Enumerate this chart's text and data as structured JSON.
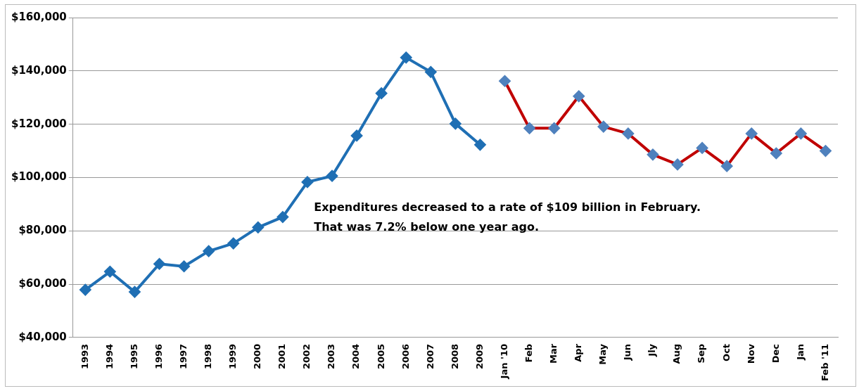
{
  "chart_data": {
    "type": "line",
    "categories": [
      "1993",
      "1994",
      "1995",
      "1996",
      "1997",
      "1998",
      "1999",
      "2000",
      "2001",
      "2002",
      "2003",
      "2004",
      "2005",
      "2006",
      "2007",
      "2008",
      "2009",
      "Jan '10",
      "Feb",
      "Mar",
      "Apr",
      "May",
      "Jun",
      "Jly",
      "Aug",
      "Sep",
      "Oct",
      "Nov",
      "Dec",
      "Jan",
      "Feb '11"
    ],
    "series": [
      {
        "color": "#1f6fb4",
        "values": [
          57900,
          64700,
          57100,
          67600,
          66700,
          72400,
          75300,
          81300,
          85200,
          98300,
          100600,
          115700,
          131600,
          145000,
          139600,
          120200,
          112300,
          null,
          null,
          null,
          null,
          null,
          null,
          null,
          null,
          null,
          null,
          null,
          null,
          null,
          null
        ]
      },
      {
        "color": "#c00000",
        "colors": [
          null,
          null,
          null,
          null,
          null,
          null,
          null,
          null,
          null,
          null,
          null,
          null,
          null,
          null,
          null,
          null,
          null,
          "#4f81bd",
          "#4f81bd",
          "#4f81bd",
          "#4f81bd",
          "#4f81bd",
          "#4f81bd",
          "#4f81bd",
          "#4f81bd",
          "#4f81bd",
          "#4f81bd",
          "#4f81bd",
          "#4f81bd",
          "#4f81bd",
          "#4f81bd"
        ],
        "values": [
          null,
          null,
          null,
          null,
          null,
          null,
          null,
          null,
          null,
          null,
          null,
          null,
          null,
          null,
          null,
          null,
          null,
          136200,
          118500,
          118500,
          130500,
          119100,
          116500,
          108600,
          104900,
          111100,
          104300,
          116500,
          109100,
          116500,
          110000
        ]
      }
    ],
    "ylim": [
      40000,
      160000
    ],
    "yticks": [
      {
        "value": 40000,
        "label": "$40,000"
      },
      {
        "value": 60000,
        "label": "$60,000"
      },
      {
        "value": 80000,
        "label": "$80,000"
      },
      {
        "value": 100000,
        "label": "$100,000"
      },
      {
        "value": 120000,
        "label": "$120,000"
      },
      {
        "value": 140000,
        "label": "$140,000"
      },
      {
        "value": 160000,
        "label": "$160,000"
      }
    ],
    "grid": "y",
    "legend": false,
    "marker": "diamond",
    "line_style": "solid",
    "annotations": [
      "Expenditures decreased to a rate of $109 billion in February.",
      "That was 7.2% below one year ago."
    ]
  }
}
